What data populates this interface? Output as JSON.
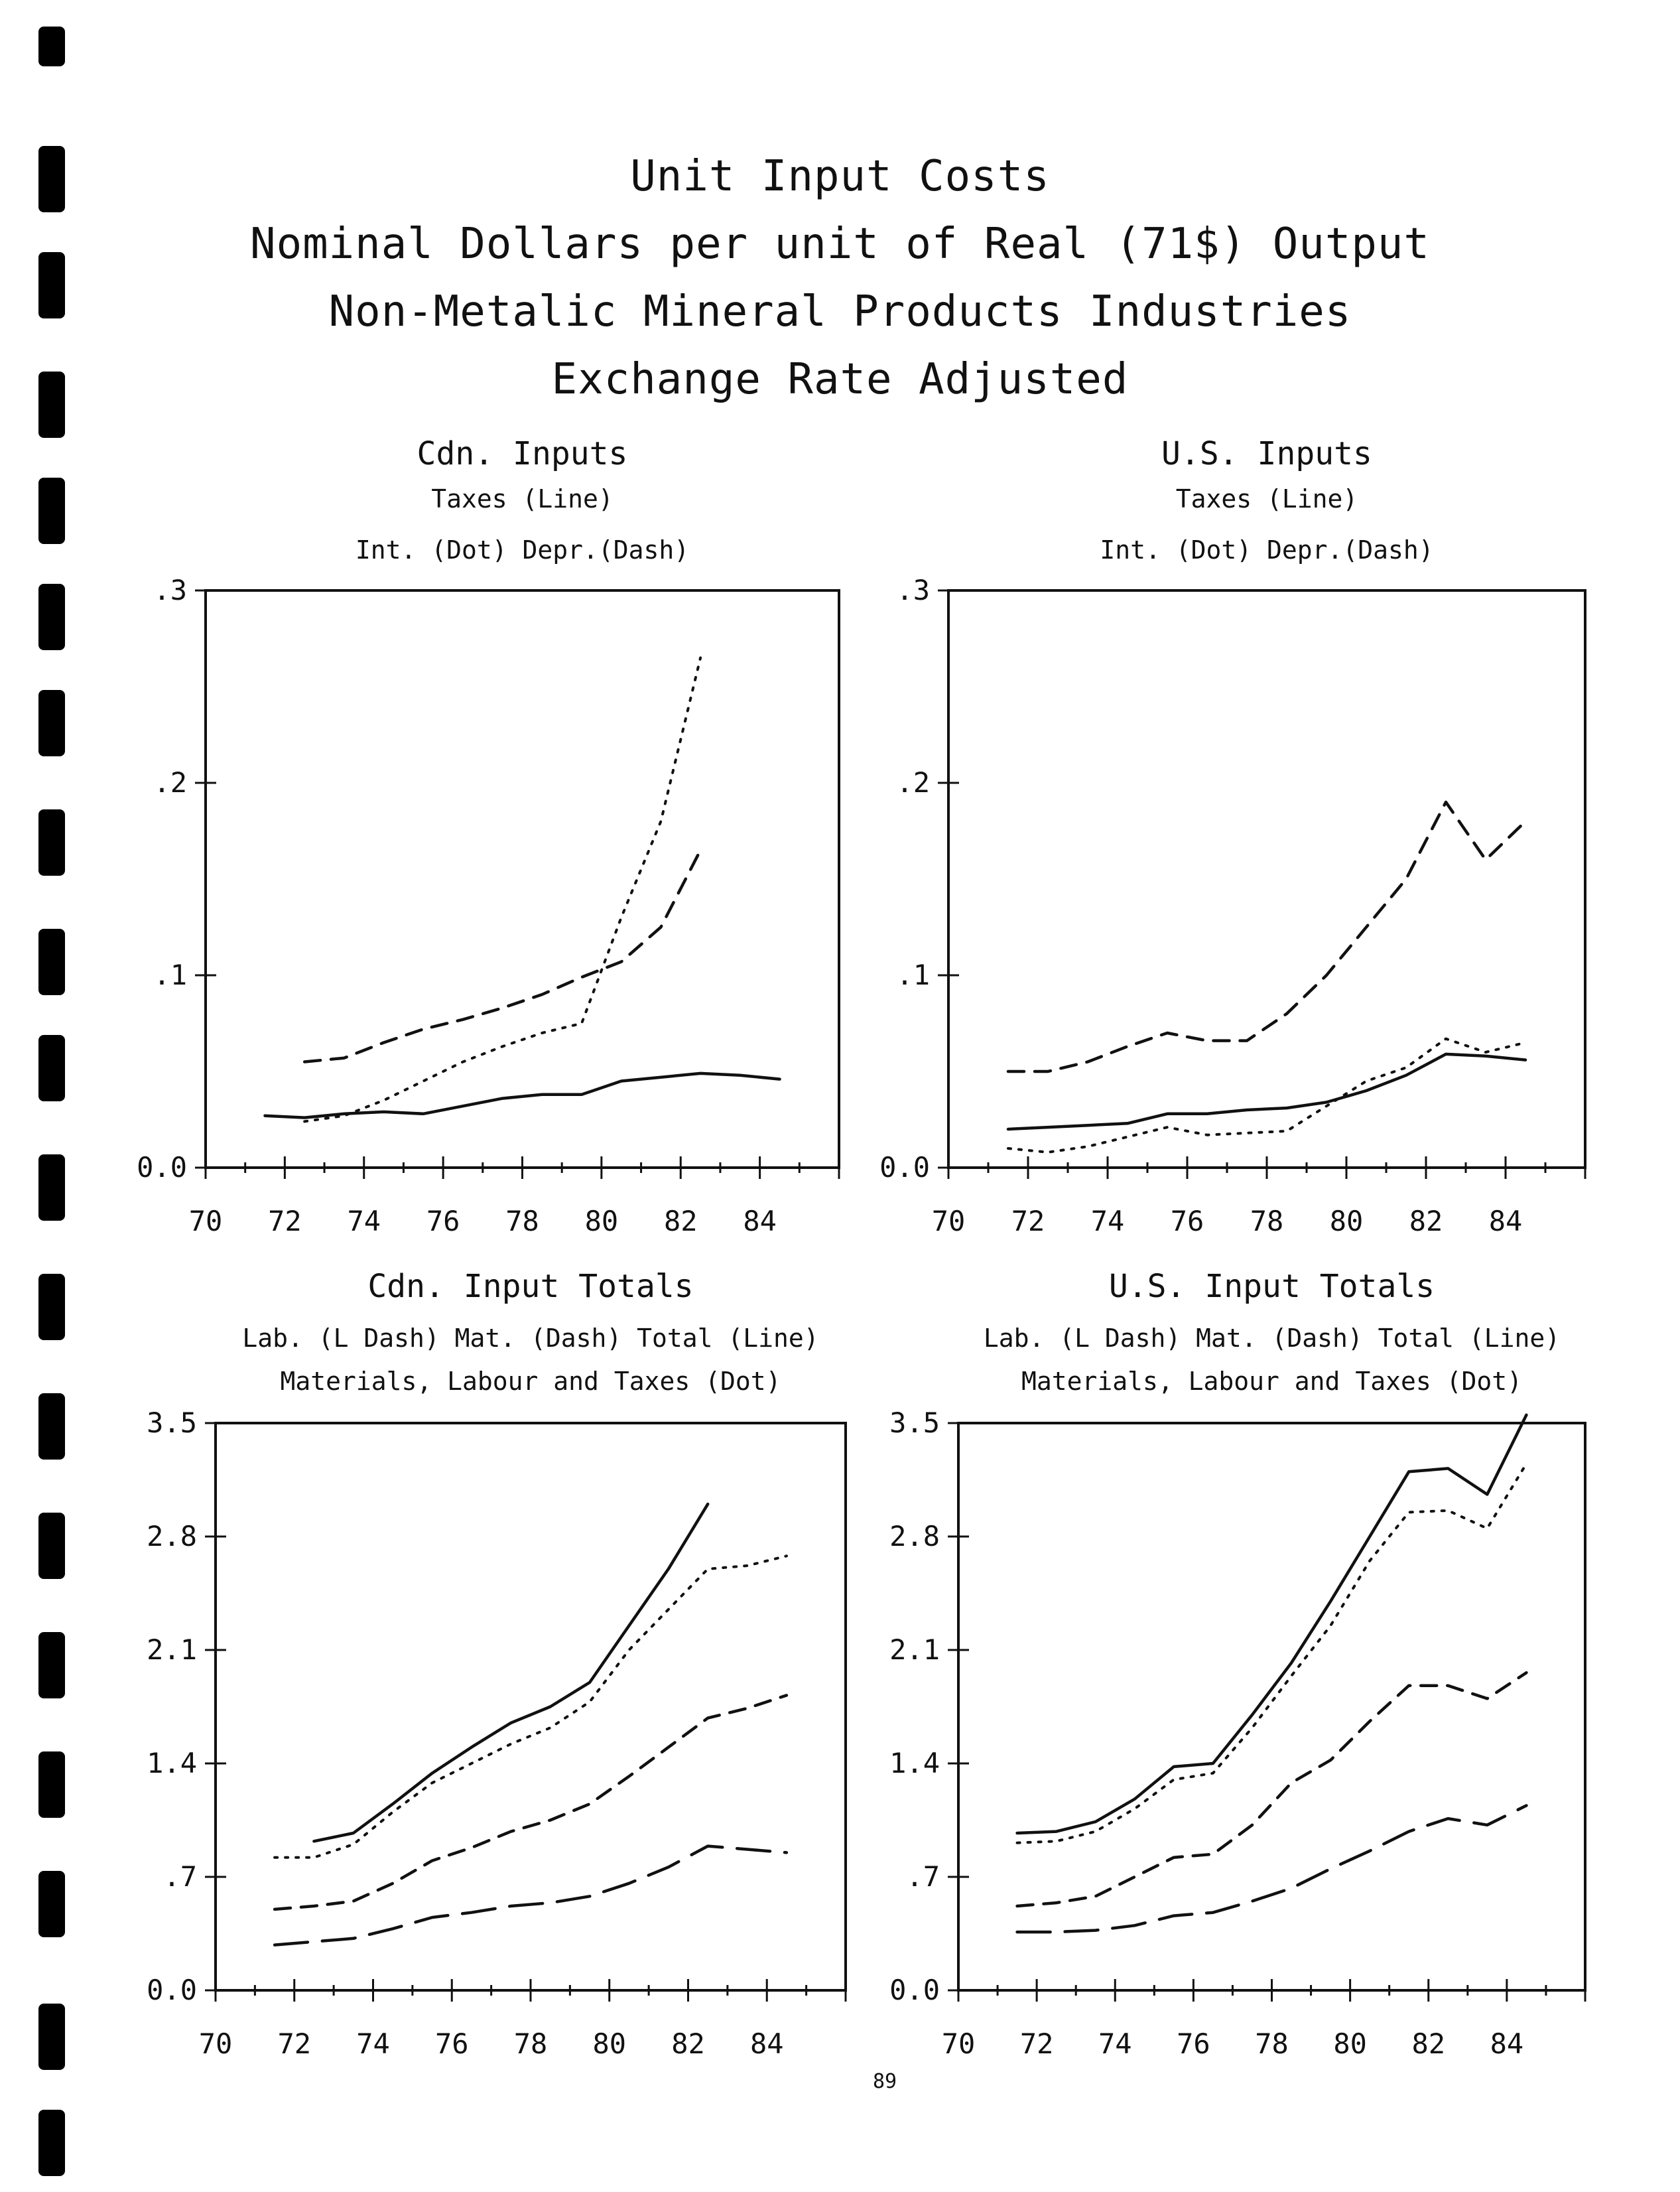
{
  "page": {
    "title_lines": [
      "Unit Input Costs",
      "Nominal Dollars per unit of Real (71$) Output",
      "Non-Metalic Mineral Products Industries",
      "Exchange Rate Adjusted"
    ],
    "page_number": "89"
  },
  "chart_data": [
    {
      "type": "line",
      "title": "Cdn. Inputs",
      "legend_lines": [
        "Taxes (Line)",
        "Int. (Dot)     Depr.(Dash)"
      ],
      "xlim": [
        70,
        86
      ],
      "ylim": [
        0,
        0.3
      ],
      "x_ticks": [
        "70",
        "72",
        "74",
        "76",
        "78",
        "80",
        "82",
        "84"
      ],
      "y_ticks": [
        "0.0",
        ".1",
        ".2",
        ".3"
      ],
      "grid": false,
      "series": [
        {
          "name": "Taxes",
          "style": "solid",
          "x": [
            71.5,
            72.5,
            73.5,
            74.5,
            75.5,
            76.5,
            77.5,
            78.5,
            79.5,
            80.5,
            81.5,
            82.5,
            83.5,
            84.5
          ],
          "y": [
            0.027,
            0.026,
            0.028,
            0.029,
            0.028,
            0.032,
            0.036,
            0.038,
            0.038,
            0.045,
            0.047,
            0.049,
            0.048,
            0.046
          ]
        },
        {
          "name": "Int.",
          "style": "dot",
          "x": [
            72.5,
            73.5,
            74.5,
            75.5,
            76.5,
            77.5,
            78.5,
            79.5,
            80.5,
            81.5,
            82.5
          ],
          "y": [
            0.024,
            0.027,
            0.035,
            0.045,
            0.055,
            0.063,
            0.07,
            0.075,
            0.13,
            0.18,
            0.265
          ]
        },
        {
          "name": "Depr.",
          "style": "dash",
          "x": [
            72.5,
            73.5,
            74.5,
            75.5,
            76.5,
            77.5,
            78.5,
            79.5,
            80.5,
            81.5,
            82.5
          ],
          "y": [
            0.055,
            0.057,
            0.065,
            0.072,
            0.077,
            0.083,
            0.09,
            0.099,
            0.107,
            0.125,
            0.165
          ]
        }
      ]
    },
    {
      "type": "line",
      "title": "U.S. Inputs",
      "legend_lines": [
        "Taxes (Line)",
        "Int. (Dot)     Depr.(Dash)"
      ],
      "xlim": [
        70,
        86
      ],
      "ylim": [
        0,
        0.3
      ],
      "x_ticks": [
        "70",
        "72",
        "74",
        "76",
        "78",
        "80",
        "82",
        "84"
      ],
      "y_ticks": [
        "0.0",
        ".1",
        ".2",
        ".3"
      ],
      "grid": false,
      "series": [
        {
          "name": "Taxes",
          "style": "solid",
          "x": [
            71.5,
            72.5,
            73.5,
            74.5,
            75.5,
            76.5,
            77.5,
            78.5,
            79.5,
            80.5,
            81.5,
            82.5,
            83.5,
            84.5
          ],
          "y": [
            0.02,
            0.021,
            0.022,
            0.023,
            0.028,
            0.028,
            0.03,
            0.031,
            0.034,
            0.04,
            0.048,
            0.059,
            0.058,
            0.056
          ]
        },
        {
          "name": "Int.",
          "style": "dot",
          "x": [
            71.5,
            72.5,
            73.5,
            74.5,
            75.5,
            76.5,
            77.5,
            78.5,
            79.5,
            80.5,
            81.5,
            82.5,
            83.5,
            84.5
          ],
          "y": [
            0.01,
            0.008,
            0.011,
            0.016,
            0.021,
            0.017,
            0.018,
            0.019,
            0.032,
            0.045,
            0.052,
            0.067,
            0.06,
            0.065
          ]
        },
        {
          "name": "Depr.",
          "style": "dash",
          "x": [
            71.5,
            72.5,
            73.5,
            74.5,
            75.5,
            76.5,
            77.5,
            78.5,
            79.5,
            80.5,
            81.5,
            82.5,
            83.5,
            84.5
          ],
          "y": [
            0.05,
            0.05,
            0.055,
            0.063,
            0.07,
            0.066,
            0.066,
            0.08,
            0.1,
            0.125,
            0.15,
            0.19,
            0.16,
            0.18
          ]
        }
      ]
    },
    {
      "type": "line",
      "title": "Cdn. Input Totals",
      "legend_lines": [
        "Lab. (L Dash)     Mat. (Dash)       Total (Line)",
        "Materials, Labour and Taxes (Dot)"
      ],
      "xlim": [
        70,
        86
      ],
      "ylim": [
        0,
        3.5
      ],
      "x_ticks": [
        "70",
        "72",
        "74",
        "76",
        "78",
        "80",
        "82",
        "84"
      ],
      "y_ticks": [
        "0.0",
        ".7",
        "1.4",
        "2.1",
        "2.8",
        "3.5"
      ],
      "grid": false,
      "series": [
        {
          "name": "Total",
          "style": "solid",
          "x": [
            72.5,
            73.5,
            74.5,
            75.5,
            76.5,
            77.5,
            78.5,
            79.5,
            80.5,
            81.5,
            82.5
          ],
          "y": [
            0.92,
            0.97,
            1.15,
            1.34,
            1.5,
            1.65,
            1.75,
            1.9,
            2.25,
            2.6,
            3.0
          ]
        },
        {
          "name": "Materials, Labour and Taxes",
          "style": "dot",
          "x": [
            71.5,
            72.5,
            73.5,
            74.5,
            75.5,
            76.5,
            77.5,
            78.5,
            79.5,
            80.5,
            81.5,
            82.5,
            83.5,
            84.5
          ],
          "y": [
            0.82,
            0.82,
            0.9,
            1.1,
            1.28,
            1.4,
            1.52,
            1.62,
            1.78,
            2.1,
            2.35,
            2.6,
            2.62,
            2.68
          ]
        },
        {
          "name": "Mat.",
          "style": "dash",
          "x": [
            71.5,
            72.5,
            73.5,
            74.5,
            75.5,
            76.5,
            77.5,
            78.5,
            79.5,
            80.5,
            81.5,
            82.5,
            83.5,
            84.5
          ],
          "y": [
            0.5,
            0.52,
            0.55,
            0.66,
            0.8,
            0.88,
            0.98,
            1.05,
            1.15,
            1.32,
            1.5,
            1.68,
            1.74,
            1.82
          ]
        },
        {
          "name": "Lab.",
          "style": "longdash",
          "x": [
            71.5,
            72.5,
            73.5,
            74.5,
            75.5,
            76.5,
            77.5,
            78.5,
            79.5,
            80.5,
            81.5,
            82.5,
            83.5,
            84.5
          ],
          "y": [
            0.28,
            0.3,
            0.32,
            0.38,
            0.45,
            0.48,
            0.52,
            0.54,
            0.58,
            0.66,
            0.76,
            0.89,
            0.87,
            0.85
          ]
        }
      ]
    },
    {
      "type": "line",
      "title": "U.S. Input Totals",
      "legend_lines": [
        "Lab. (L Dash)     Mat. (Dash)       Total (Line)",
        "Materials, Labour and Taxes (Dot)"
      ],
      "xlim": [
        70,
        86
      ],
      "ylim": [
        0,
        3.5
      ],
      "x_ticks": [
        "70",
        "72",
        "74",
        "76",
        "78",
        "80",
        "82",
        "84"
      ],
      "y_ticks": [
        "0.0",
        ".7",
        "1.4",
        "2.1",
        "2.8",
        "3.5"
      ],
      "grid": false,
      "series": [
        {
          "name": "Total",
          "style": "solid",
          "x": [
            71.5,
            72.5,
            73.5,
            74.5,
            75.5,
            76.5,
            77.5,
            78.5,
            79.5,
            80.5,
            81.5,
            82.5,
            83.5,
            84.5
          ],
          "y": [
            0.97,
            0.98,
            1.04,
            1.18,
            1.38,
            1.4,
            1.7,
            2.02,
            2.4,
            2.8,
            3.2,
            3.22,
            3.06,
            3.55
          ]
        },
        {
          "name": "Materials, Labour and Taxes",
          "style": "dot",
          "x": [
            71.5,
            72.5,
            73.5,
            74.5,
            75.5,
            76.5,
            77.5,
            78.5,
            79.5,
            80.5,
            81.5,
            82.5,
            83.5,
            84.5
          ],
          "y": [
            0.91,
            0.92,
            0.98,
            1.12,
            1.3,
            1.34,
            1.62,
            1.94,
            2.25,
            2.65,
            2.95,
            2.96,
            2.85,
            3.25
          ]
        },
        {
          "name": "Mat.",
          "style": "dash",
          "x": [
            71.5,
            72.5,
            73.5,
            74.5,
            75.5,
            76.5,
            77.5,
            78.5,
            79.5,
            80.5,
            81.5,
            82.5,
            83.5,
            84.5
          ],
          "y": [
            0.52,
            0.54,
            0.58,
            0.7,
            0.82,
            0.84,
            1.02,
            1.28,
            1.42,
            1.66,
            1.88,
            1.88,
            1.8,
            1.96
          ]
        },
        {
          "name": "Lab.",
          "style": "longdash",
          "x": [
            71.5,
            72.5,
            73.5,
            74.5,
            75.5,
            76.5,
            77.5,
            78.5,
            79.5,
            80.5,
            81.5,
            82.5,
            83.5,
            84.5
          ],
          "y": [
            0.36,
            0.36,
            0.37,
            0.4,
            0.46,
            0.48,
            0.55,
            0.63,
            0.75,
            0.86,
            0.98,
            1.06,
            1.02,
            1.14
          ]
        }
      ]
    }
  ]
}
